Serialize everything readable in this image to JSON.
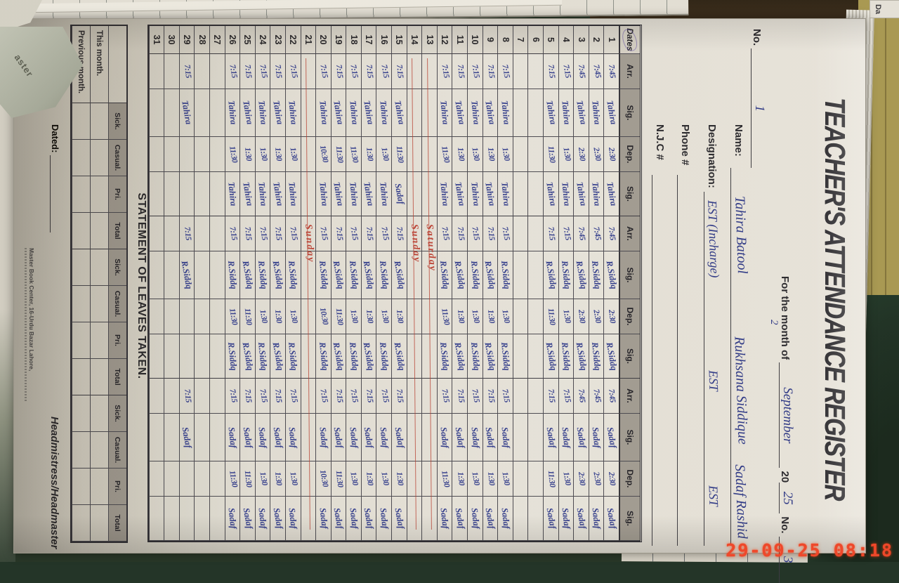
{
  "timestamp": "29-09-25 08:18",
  "background": {
    "torn_label": "aster",
    "page_peek_label": "Da"
  },
  "colors": {
    "ink_blue": "#333f92",
    "red_mark": "#bf4439",
    "timestamp_red": "#f4472b",
    "header_gray": "#a49f97",
    "cover_olive": "#ab9c55",
    "table_green": "#1d3126"
  },
  "register": {
    "title": "TEACHER'S ATTENDANCE REGISTER",
    "no_top": {
      "label": "No.",
      "value": "1"
    },
    "month_line": {
      "prefix": "For the month of",
      "month_value": "September",
      "month_extra": "2",
      "year_prefix": "20",
      "year_value": "25",
      "no_label": "No.",
      "no_value": "3"
    },
    "fields": {
      "name_label": "Name:",
      "designation_label": "Designation:",
      "phone_label": "Phone #",
      "njc_label": "N.J.C #"
    },
    "teachers": [
      {
        "name": "Tahira Batool",
        "designation": "EST (Incharge)",
        "sig": "Tahira"
      },
      {
        "name": "Rukhsana Siddique",
        "designation": "EST",
        "sig": "R.Siddq"
      },
      {
        "name": "Sadaf Rashid",
        "designation": "EST",
        "sig": "Sadaf"
      }
    ],
    "table": {
      "date_header": "Dates",
      "col_headers": [
        "Arr.",
        "Sig.",
        "Dep.",
        "Sig."
      ],
      "rows": [
        {
          "date": "1",
          "cells": [
            "7:45",
            "Tahira",
            "2:30",
            "Tahira",
            "7:45",
            "R.Siddq",
            "2:30",
            "R.Siddq",
            "7:45",
            "Sadaf",
            "2:30",
            "Sadaf"
          ],
          "note": ""
        },
        {
          "date": "2",
          "cells": [
            "7:45",
            "Tahira",
            "2:30",
            "Tahira",
            "7:45",
            "R.Siddq",
            "2:30",
            "R.Siddq",
            "7:45",
            "Sadaf",
            "2:30",
            "Sadaf"
          ],
          "note": ""
        },
        {
          "date": "3",
          "cells": [
            "7:45",
            "Tahira",
            "2:30",
            "Tahira",
            "7:45",
            "R.Siddq",
            "2:30",
            "R.Siddq",
            "7:45",
            "Sadaf",
            "2:30",
            "Sadaf"
          ],
          "note": ""
        },
        {
          "date": "4",
          "cells": [
            "7:15",
            "Tahira",
            "1:30",
            "Tahira",
            "7:15",
            "R.Siddq",
            "1:30",
            "R.Siddq",
            "7:15",
            "Sadaf",
            "1:30",
            "Sadaf"
          ],
          "note": ""
        },
        {
          "date": "5",
          "cells": [
            "7:15",
            "Tahira",
            "11:30",
            "Tahira",
            "7:15",
            "R.Siddq",
            "11:30",
            "R.Siddq",
            "7:15",
            "Sadaf",
            "11:30",
            "Sadaf"
          ],
          "note": ""
        },
        {
          "date": "6",
          "cells": [
            "",
            "",
            "",
            "",
            "",
            "",
            "",
            "",
            "",
            "",
            "",
            ""
          ],
          "note": ""
        },
        {
          "date": "7",
          "cells": [
            "",
            "",
            "",
            "",
            "",
            "",
            "",
            "",
            "",
            "",
            "",
            ""
          ],
          "note": ""
        },
        {
          "date": "8",
          "cells": [
            "7:15",
            "Tahira",
            "1:30",
            "Tahira",
            "7:15",
            "R.Siddq",
            "1:30",
            "R.Siddq",
            "7:15",
            "Sadaf",
            "1:30",
            "Sadaf"
          ],
          "note": ""
        },
        {
          "date": "9",
          "cells": [
            "7:15",
            "Tahira",
            "1:30",
            "Tahira",
            "7:15",
            "R.Siddq",
            "1:30",
            "R.Siddq",
            "7:15",
            "Sadaf",
            "1:30",
            "Sadaf"
          ],
          "note": ""
        },
        {
          "date": "10",
          "cells": [
            "7:15",
            "Tahira",
            "1:30",
            "Tahira",
            "7:15",
            "R.Siddq",
            "1:30",
            "R.Siddq",
            "7:15",
            "Sadaf",
            "1:30",
            "Sadaf"
          ],
          "note": ""
        },
        {
          "date": "11",
          "cells": [
            "7:15",
            "Tahira",
            "1:30",
            "Tahira",
            "7:15",
            "R.Siddq",
            "1:30",
            "R.Siddq",
            "7:15",
            "Sadaf",
            "1:30",
            "Sadaf"
          ],
          "note": ""
        },
        {
          "date": "12",
          "cells": [
            "7:15",
            "Tahira",
            "11:30",
            "Tahira",
            "7:15",
            "R.Siddq",
            "11:30",
            "R.Siddq",
            "7:15",
            "Sadaf",
            "11:30",
            "Sadaf"
          ],
          "note": ""
        },
        {
          "date": "13",
          "cells": [
            "",
            "",
            "",
            "",
            "",
            "",
            "",
            "",
            "",
            "",
            "",
            ""
          ],
          "note": "Saturday"
        },
        {
          "date": "14",
          "cells": [
            "",
            "",
            "",
            "",
            "",
            "",
            "",
            "",
            "",
            "",
            "",
            ""
          ],
          "note": "Sunday"
        },
        {
          "date": "15",
          "cells": [
            "7:15",
            "Tahira",
            "11:30",
            "Sadaf",
            "7:15",
            "R.Siddq",
            "1:30",
            "R.Siddq",
            "7:15",
            "Sadaf",
            "1:30",
            "Sadaf"
          ],
          "note": ""
        },
        {
          "date": "16",
          "cells": [
            "7:15",
            "Tahira",
            "1:30",
            "Tahira",
            "7:15",
            "R.Siddq",
            "1:30",
            "R.Siddq",
            "7:15",
            "Sadaf",
            "1:30",
            "Sadaf"
          ],
          "note": ""
        },
        {
          "date": "17",
          "cells": [
            "7:15",
            "Tahira",
            "1:30",
            "Tahira",
            "7:15",
            "R.Siddq",
            "1:30",
            "R.Siddq",
            "7:15",
            "Sadaf",
            "1:30",
            "Sadaf"
          ],
          "note": ""
        },
        {
          "date": "18",
          "cells": [
            "7:15",
            "Tahira",
            "11:30",
            "Tahira",
            "7:15",
            "R.Siddq",
            "1:30",
            "R.Siddq",
            "7:15",
            "Sadaf",
            "1:30",
            "Sadaf"
          ],
          "note": ""
        },
        {
          "date": "19",
          "cells": [
            "7:15",
            "Tahira",
            "11:30",
            "Tahira",
            "7:15",
            "R.Siddq",
            "11:30",
            "R.Siddq",
            "7:15",
            "Sadaf",
            "11:30",
            "Sadaf"
          ],
          "note": ""
        },
        {
          "date": "20",
          "cells": [
            "7:15",
            "Tahira",
            "10:30",
            "Tahira",
            "7:15",
            "R.Siddq",
            "10:30",
            "R.Siddq",
            "7:15",
            "Sadaf",
            "10:30",
            "Sadaf"
          ],
          "note": ""
        },
        {
          "date": "21",
          "cells": [
            "",
            "",
            "",
            "",
            "",
            "",
            "",
            "",
            "",
            "",
            "",
            ""
          ],
          "note": "Sunday"
        },
        {
          "date": "22",
          "cells": [
            "7:15",
            "Tahira",
            "1:30",
            "Tahira",
            "7:15",
            "R.Siddq",
            "1:30",
            "R.Siddq",
            "7:15",
            "Sadaf",
            "1:30",
            "Sadaf"
          ],
          "note": ""
        },
        {
          "date": "23",
          "cells": [
            "7:15",
            "Tahira",
            "1:30",
            "Tahira",
            "7:15",
            "R.Siddq",
            "1:30",
            "R.Siddq",
            "7:15",
            "Sadaf",
            "1:30",
            "Sadaf"
          ],
          "note": ""
        },
        {
          "date": "24",
          "cells": [
            "7:15",
            "Tahira",
            "1:30",
            "Tahira",
            "7:15",
            "R.Siddq",
            "1:30",
            "R.Siddq",
            "7:15",
            "Sadaf",
            "1:30",
            "Sadaf"
          ],
          "note": ""
        },
        {
          "date": "25",
          "cells": [
            "7:15",
            "Tahira",
            "1:30",
            "Tahira",
            "7:15",
            "R.Siddq",
            "11:30",
            "R.Siddq",
            "7:15",
            "Sadaf",
            "11:30",
            "Sadaf"
          ],
          "note": ""
        },
        {
          "date": "26",
          "cells": [
            "7:15",
            "Tahira",
            "11:30",
            "Tahira",
            "7:15",
            "R.Siddq",
            "11:30",
            "R.Siddq",
            "7:15",
            "Sadaf",
            "11:30",
            "Sadaf"
          ],
          "note": ""
        },
        {
          "date": "27",
          "cells": [
            "",
            "",
            "",
            "",
            "",
            "",
            "",
            "",
            "",
            "",
            "",
            ""
          ],
          "note": ""
        },
        {
          "date": "28",
          "cells": [
            "",
            "",
            "",
            "",
            "",
            "",
            "",
            "",
            "",
            "",
            "",
            ""
          ],
          "note": ""
        },
        {
          "date": "29",
          "cells": [
            "7:15",
            "Tahira",
            "",
            "",
            "7:15",
            "R.Siddq",
            "",
            "",
            "7:15",
            "Sadaf",
            "",
            ""
          ],
          "note": ""
        },
        {
          "date": "30",
          "cells": [
            "",
            "",
            "",
            "",
            "",
            "",
            "",
            "",
            "",
            "",
            "",
            ""
          ],
          "note": ""
        },
        {
          "date": "31",
          "cells": [
            "",
            "",
            "",
            "",
            "",
            "",
            "",
            "",
            "",
            "",
            "",
            ""
          ],
          "note": ""
        }
      ]
    },
    "leaves": {
      "title": "STATEMENT OF LEAVES TAKEN.",
      "col_headers": [
        "Sick.",
        "Casual.",
        "Pri.",
        "Total"
      ],
      "row_labels": [
        "This month.",
        "Previous month."
      ]
    },
    "footer": {
      "dated_label": "Dated:",
      "sign_label": "Headmistress/Headmaster",
      "printer": "Master Book Center, 16-Urdu Bazar Lahore,"
    }
  }
}
